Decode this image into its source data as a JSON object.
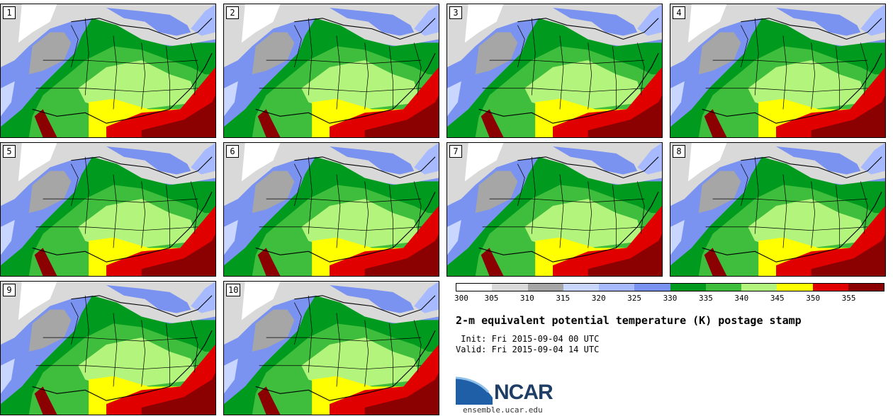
{
  "panels": [
    {
      "label": "1"
    },
    {
      "label": "2"
    },
    {
      "label": "3"
    },
    {
      "label": "4"
    },
    {
      "label": "5"
    },
    {
      "label": "6"
    },
    {
      "label": "7"
    },
    {
      "label": "8"
    },
    {
      "label": "9"
    },
    {
      "label": "10"
    }
  ],
  "colorbar": {
    "colors": [
      "#ffffff",
      "#d9d9d9",
      "#a6a6a6",
      "#c9d6ff",
      "#a7b9ff",
      "#7b93f0",
      "#009b1e",
      "#3fbd3c",
      "#b3f47c",
      "#ffff00",
      "#e00000",
      "#8b0000"
    ],
    "ticks": [
      "300",
      "305",
      "310",
      "315",
      "320",
      "325",
      "330",
      "335",
      "340",
      "345",
      "350",
      "355"
    ]
  },
  "title": "2-m equivalent potential temperature (K) postage stamp",
  "init_text": " Init: Fri 2015-09-04 00 UTC",
  "valid_text": "Valid: Fri 2015-09-04 14 UTC",
  "logo_text": "NCAR",
  "url_text": "ensemble.ucar.edu"
}
